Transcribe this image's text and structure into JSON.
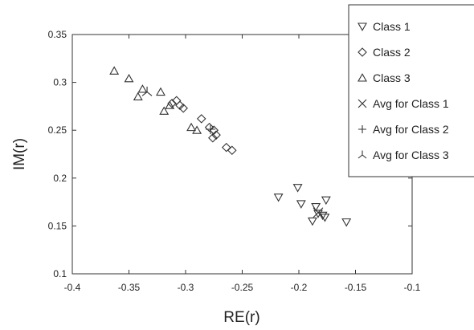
{
  "chart_data": {
    "type": "scatter",
    "title": "",
    "xlabel": "RE(r)",
    "ylabel": "IM(r)",
    "xlim": [
      -0.4,
      -0.1
    ],
    "ylim": [
      0.1,
      0.35
    ],
    "x_ticks": [
      "-0.4",
      "-0.35",
      "-0.3",
      "-0.25",
      "-0.2",
      "-0.15",
      "-0.1"
    ],
    "y_ticks": [
      "0.1",
      "0.15",
      "0.2",
      "0.25",
      "0.3",
      "0.35"
    ],
    "grid": false,
    "legend_position": "top-right (outside plot frame)",
    "series": [
      {
        "name": "Class 1",
        "marker": "triangle-down",
        "points": [
          {
            "x": -0.218,
            "y": 0.18
          },
          {
            "x": -0.201,
            "y": 0.19
          },
          {
            "x": -0.198,
            "y": 0.173
          },
          {
            "x": -0.176,
            "y": 0.177
          },
          {
            "x": -0.185,
            "y": 0.17
          },
          {
            "x": -0.183,
            "y": 0.163
          },
          {
            "x": -0.179,
            "y": 0.161
          },
          {
            "x": -0.177,
            "y": 0.159
          },
          {
            "x": -0.188,
            "y": 0.155
          },
          {
            "x": -0.158,
            "y": 0.154
          }
        ]
      },
      {
        "name": "Class 2",
        "marker": "diamond",
        "points": [
          {
            "x": -0.312,
            "y": 0.278
          },
          {
            "x": -0.308,
            "y": 0.281
          },
          {
            "x": -0.305,
            "y": 0.276
          },
          {
            "x": -0.302,
            "y": 0.273
          },
          {
            "x": -0.286,
            "y": 0.262
          },
          {
            "x": -0.279,
            "y": 0.253
          },
          {
            "x": -0.275,
            "y": 0.25
          },
          {
            "x": -0.273,
            "y": 0.245
          },
          {
            "x": -0.276,
            "y": 0.242
          },
          {
            "x": -0.264,
            "y": 0.232
          },
          {
            "x": -0.259,
            "y": 0.229
          }
        ]
      },
      {
        "name": "Class 3",
        "marker": "triangle-up",
        "points": [
          {
            "x": -0.363,
            "y": 0.312
          },
          {
            "x": -0.35,
            "y": 0.304
          },
          {
            "x": -0.338,
            "y": 0.293
          },
          {
            "x": -0.342,
            "y": 0.285
          },
          {
            "x": -0.322,
            "y": 0.29
          },
          {
            "x": -0.319,
            "y": 0.27
          },
          {
            "x": -0.314,
            "y": 0.276
          },
          {
            "x": -0.295,
            "y": 0.253
          },
          {
            "x": -0.29,
            "y": 0.25
          }
        ]
      },
      {
        "name": "Avg for Class 1",
        "marker": "x",
        "points": [
          {
            "x": -0.183,
            "y": 0.164
          }
        ]
      },
      {
        "name": "Avg for Class 2",
        "marker": "plus",
        "points": [
          {
            "x": -0.278,
            "y": 0.251
          }
        ]
      },
      {
        "name": "Avg for Class 3",
        "marker": "y-mark",
        "points": [
          {
            "x": -0.334,
            "y": 0.29
          }
        ]
      }
    ]
  }
}
